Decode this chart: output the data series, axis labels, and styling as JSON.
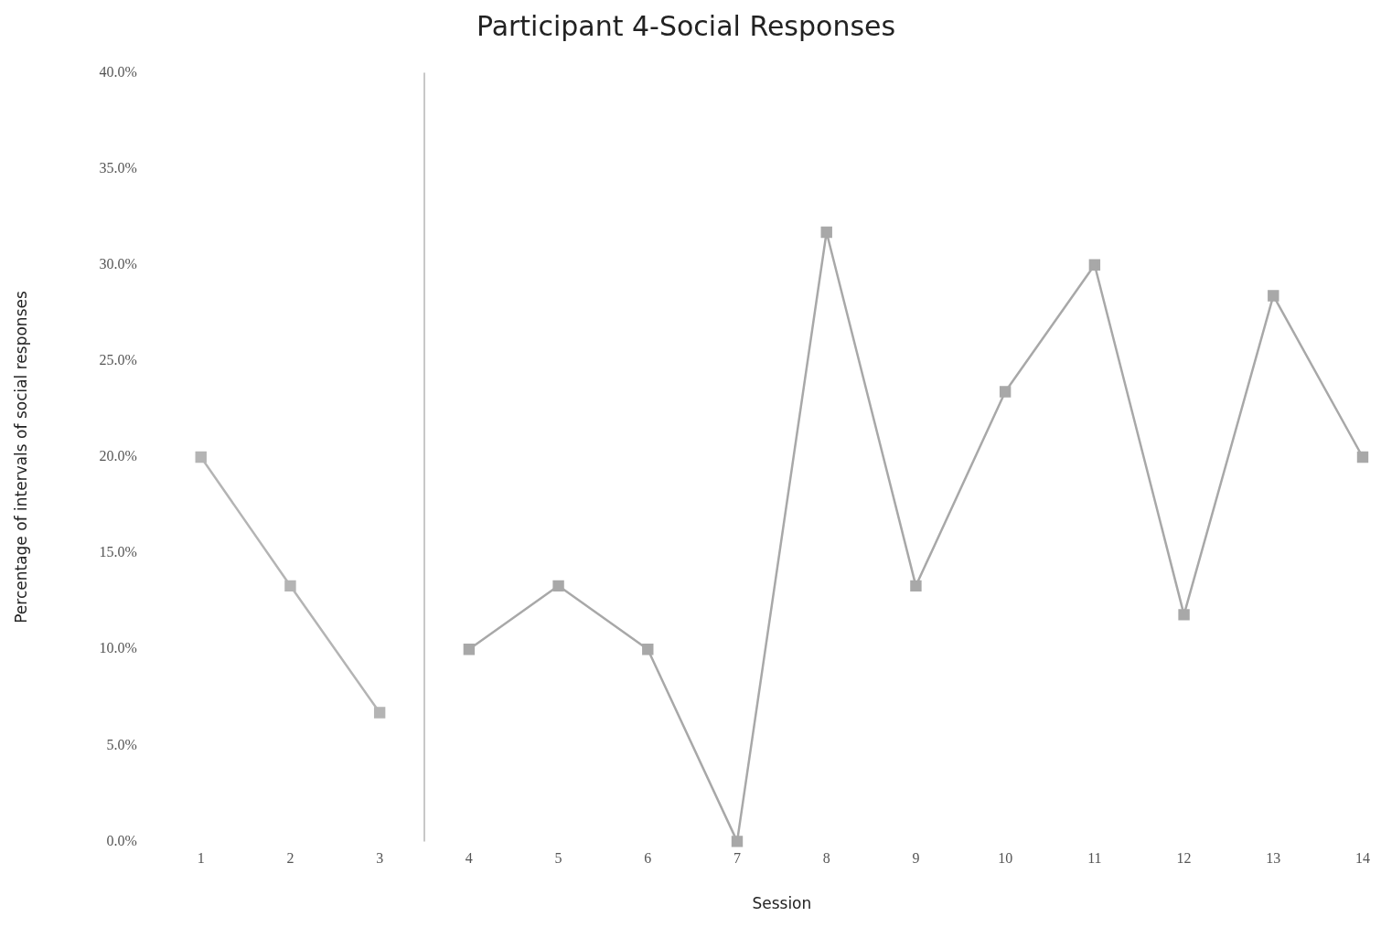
{
  "chart_data": {
    "type": "line",
    "title": "Participant 4-Social Responses",
    "xlabel": "Session",
    "ylabel": "Percentage of intervals of social responses",
    "xlim": [
      1,
      14
    ],
    "xticks": [
      1,
      2,
      3,
      4,
      5,
      6,
      7,
      8,
      9,
      10,
      11,
      12,
      13,
      14
    ],
    "ylim": [
      0,
      40
    ],
    "yticks": [
      {
        "value": 0,
        "label": "0.0%"
      },
      {
        "value": 5,
        "label": "5.0%"
      },
      {
        "value": 10,
        "label": "10.0%"
      },
      {
        "value": 15,
        "label": "15.0%"
      },
      {
        "value": 20,
        "label": "20.0%"
      },
      {
        "value": 25,
        "label": "25.0%"
      },
      {
        "value": 30,
        "label": "30.0%"
      },
      {
        "value": 35,
        "label": "35.0%"
      },
      {
        "value": 40,
        "label": "40.0%"
      }
    ],
    "grid": false,
    "legend": false,
    "marker": "square",
    "line_style": "solid",
    "ref_lines": [
      {
        "axis": "x",
        "value": 3.5,
        "color": "#c8c8c8"
      }
    ],
    "series": [
      {
        "color": "#b4b4b4",
        "x": [
          1,
          2,
          3
        ],
        "values": [
          20.0,
          13.3,
          6.7
        ]
      },
      {
        "color": "#a8a8a8",
        "x": [
          4,
          5,
          6,
          7,
          8,
          9,
          10,
          11,
          12,
          13,
          14
        ],
        "values": [
          10.0,
          13.3,
          10.0,
          0,
          31.7,
          13.3,
          23.4,
          30.0,
          11.8,
          28.4,
          20.0
        ]
      }
    ]
  }
}
